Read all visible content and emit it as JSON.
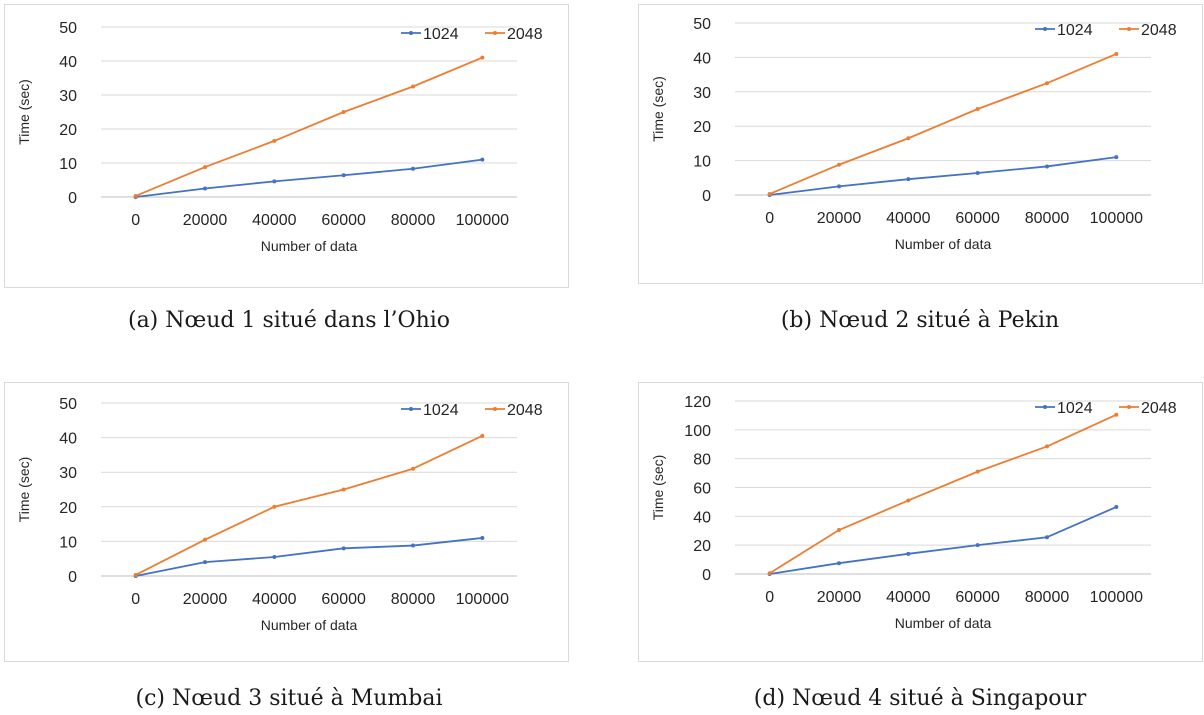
{
  "chart_data": [
    {
      "type": "line",
      "x": [
        "0",
        "20000",
        "40000",
        "60000",
        "80000",
        "100000"
      ],
      "xlabel": "Number of data",
      "ylabel": "Time (sec)",
      "ylim": [
        0,
        50
      ],
      "yticks": [
        "0",
        "10",
        "20",
        "30",
        "40",
        "50"
      ],
      "grid": true,
      "legend": "top-right",
      "series": [
        {
          "name": "1024",
          "color": "#4472c4",
          "values": [
            0,
            2.5,
            4.6,
            6.4,
            8.3,
            11
          ]
        },
        {
          "name": "2048",
          "color": "#ed7d31",
          "values": [
            0.3,
            8.8,
            16.5,
            25,
            32.5,
            41
          ]
        }
      ]
    },
    {
      "type": "line",
      "x": [
        "0",
        "20000",
        "40000",
        "60000",
        "80000",
        "100000"
      ],
      "xlabel": "Number of data",
      "ylabel": "Time (sec)",
      "ylim": [
        0,
        50
      ],
      "yticks": [
        "0",
        "10",
        "20",
        "30",
        "40",
        "50"
      ],
      "grid": true,
      "legend": "top-right",
      "series": [
        {
          "name": "1024",
          "color": "#4472c4",
          "values": [
            0,
            2.5,
            4.6,
            6.4,
            8.3,
            11
          ]
        },
        {
          "name": "2048",
          "color": "#ed7d31",
          "values": [
            0.3,
            8.8,
            16.5,
            25,
            32.5,
            41
          ]
        }
      ]
    },
    {
      "type": "line",
      "x": [
        "0",
        "20000",
        "40000",
        "60000",
        "80000",
        "100000"
      ],
      "xlabel": "Number of data",
      "ylabel": "Time (sec)",
      "ylim": [
        0,
        50
      ],
      "yticks": [
        "0",
        "10",
        "20",
        "30",
        "40",
        "50"
      ],
      "grid": true,
      "legend": "top-right",
      "series": [
        {
          "name": "1024",
          "color": "#4472c4",
          "values": [
            0,
            4,
            5.5,
            8,
            8.8,
            11
          ]
        },
        {
          "name": "2048",
          "color": "#ed7d31",
          "values": [
            0.3,
            10.5,
            20,
            25,
            31,
            40.5
          ]
        }
      ]
    },
    {
      "type": "line",
      "x": [
        "0",
        "20000",
        "40000",
        "60000",
        "80000",
        "100000"
      ],
      "xlabel": "Number of data",
      "ylabel": "Time (sec)",
      "ylim": [
        0,
        120
      ],
      "yticks": [
        "0",
        "20",
        "40",
        "60",
        "80",
        "100",
        "120"
      ],
      "grid": true,
      "legend": "top-right",
      "series": [
        {
          "name": "1024",
          "color": "#4472c4",
          "values": [
            0,
            7.5,
            14,
            20,
            25.5,
            46.5
          ]
        },
        {
          "name": "2048",
          "color": "#ed7d31",
          "values": [
            0.5,
            30.5,
            51,
            71,
            88.5,
            110.5
          ]
        }
      ]
    }
  ],
  "captions": [
    "(a) Nœud 1 situé dans l’Ohio",
    "(b) Nœud 2 situé à Pekin",
    "(c) Nœud 3 situé à Mumbai",
    "(d) Nœud 4 situé à Singapour"
  ]
}
